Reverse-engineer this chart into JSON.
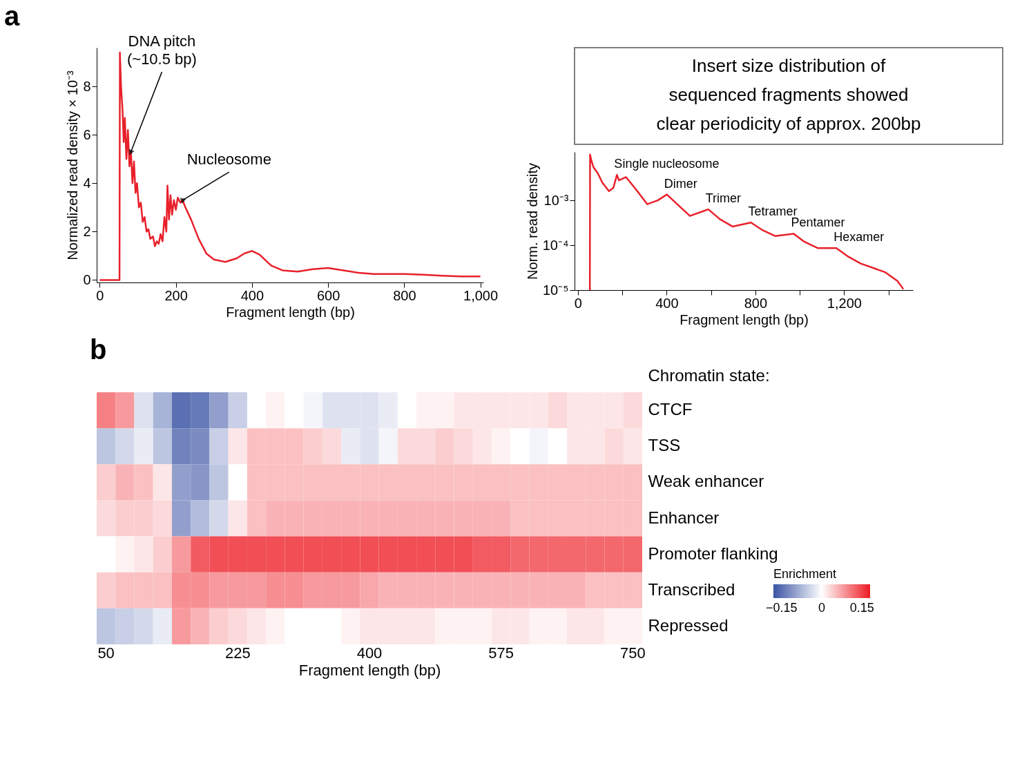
{
  "chart_data": [
    {
      "type": "line",
      "title": "a",
      "xlabel": "Fragment length (bp)",
      "ylabel": "Normalized read density × 10⁻³",
      "xlim": [
        -8,
        1008
      ],
      "xticks": [
        0,
        200,
        400,
        600,
        800,
        {
          "value": 1000,
          "label": "1,000"
        }
      ],
      "ylim": [
        -0.1,
        9.6
      ],
      "yticks": [
        0,
        2,
        4,
        6,
        8
      ],
      "grid": false,
      "marker": "none",
      "line_style": "solid",
      "series": [
        {
          "color": "#e8202a",
          "x": [
            0,
            50,
            52,
            53,
            56,
            60,
            63,
            66,
            70,
            74,
            78,
            82,
            86,
            90,
            94,
            98,
            103,
            108,
            113,
            118,
            123,
            128,
            133,
            140,
            145,
            150,
            155,
            160,
            165,
            170,
            175,
            178,
            182,
            186,
            190,
            195,
            200,
            205,
            212,
            218,
            225,
            240,
            260,
            280,
            300,
            330,
            360,
            380,
            400,
            420,
            450,
            480,
            520,
            560,
            600,
            640,
            680,
            720,
            800,
            850,
            900,
            950,
            1000
          ],
          "values": [
            0,
            0,
            0,
            9.4,
            8.0,
            7.0,
            5.7,
            6.7,
            5.0,
            6.2,
            4.7,
            5.3,
            4.0,
            4.9,
            3.6,
            4.0,
            3.0,
            3.2,
            2.4,
            2.6,
            2.0,
            2.1,
            1.7,
            1.8,
            1.4,
            1.6,
            1.5,
            1.9,
            1.6,
            2.6,
            2.0,
            3.9,
            2.5,
            3.5,
            2.7,
            3.3,
            2.9,
            3.4,
            3.2,
            3.3,
            3.0,
            2.5,
            1.7,
            1.1,
            0.85,
            0.75,
            0.9,
            1.1,
            1.2,
            1.05,
            0.6,
            0.4,
            0.35,
            0.45,
            0.5,
            0.4,
            0.3,
            0.25,
            0.25,
            0.22,
            0.18,
            0.15,
            0.15
          ]
        }
      ],
      "annotations": [
        {
          "text": "DNA pitch\n(~10.5 bp)",
          "x": 82,
          "y": 5.3
        },
        {
          "text": "Nucleosome",
          "x": 218,
          "y": 3.3
        },
        "Insert size distribution of\nsequenced fragments showed\nclear periodicity of approx. 200bp"
      ]
    },
    {
      "type": "line",
      "xlabel": "Fragment length (bp)",
      "ylabel": "Norm. read density",
      "log": "y",
      "xlim": [
        -15,
        1510
      ],
      "xticks": [
        0,
        {
          "value": 200,
          "label": null
        },
        400,
        {
          "value": 600,
          "label": null
        },
        800,
        {
          "value": 1000,
          "label": null
        },
        {
          "value": 1200,
          "label": "1,200"
        },
        {
          "value": 1400,
          "label": null
        }
      ],
      "ylim": [
        1e-05,
        0.012
      ],
      "yticks": [
        {
          "value": 1e-05,
          "label": "10⁻⁵"
        },
        {
          "value": 0.0001,
          "label": "10⁻⁴"
        },
        {
          "value": 0.001,
          "label": "10⁻³"
        }
      ],
      "grid": false,
      "marker": "none",
      "line_style": "solid",
      "series": [
        {
          "color": "#e8202a",
          "x": [
            54,
            55,
            60,
            70,
            90,
            110,
            140,
            160,
            176,
            185,
            217,
            260,
            313,
            360,
            401,
            450,
            505,
            588,
            640,
            698,
            780,
            830,
            890,
            973,
            1020,
            1082,
            1165,
            1220,
            1275,
            1385,
            1440,
            1467
          ],
          "values": [
            1e-05,
            0.0105,
            0.008,
            0.0055,
            0.004,
            0.0025,
            0.0016,
            0.0019,
            0.0037,
            0.0028,
            0.0033,
            0.0018,
            0.00082,
            0.001,
            0.00135,
            0.0008,
            0.00045,
            0.00063,
            0.00038,
            0.00026,
            0.00032,
            0.00022,
            0.00016,
            0.00018,
            0.00012,
            8.6e-05,
            8.6e-05,
            5.5e-05,
            3.9e-05,
            2.5e-05,
            1.6e-05,
            1.05e-05
          ]
        }
      ],
      "annotations": [
        {
          "text": "Single nucleosome",
          "x": 176,
          "y": 0.0037
        },
        {
          "text": "Dimer",
          "x": 401,
          "y": 0.00135
        },
        {
          "text": "Trimer",
          "x": 588,
          "y": 0.00063
        },
        {
          "text": "Tetramer",
          "x": 780,
          "y": 0.00032
        },
        {
          "text": "Pentamer",
          "x": 973,
          "y": 0.00018
        },
        {
          "text": "Hexamer",
          "x": 1165,
          "y": 8.6e-05
        }
      ]
    },
    {
      "type": "heatmap",
      "title": "b",
      "xlabel": "Fragment length (bp)",
      "ylabel": "Chromatin state:",
      "legend_title": "Enrichment",
      "categories": [
        "50",
        null,
        null,
        null,
        null,
        null,
        null,
        "225",
        null,
        null,
        null,
        null,
        null,
        null,
        "400",
        null,
        null,
        null,
        null,
        null,
        null,
        "575",
        null,
        null,
        null,
        null,
        null,
        null,
        "750"
      ],
      "y_categories": [
        "CTCF",
        "TSS",
        "Weak enhancer",
        "Enhancer",
        "Promoter flanking",
        "Transcribed",
        "Repressed"
      ],
      "clim": [
        -0.18,
        0.18
      ],
      "cticks": [
        {
          "value": -0.15,
          "label": "−0.15"
        },
        0,
        0.15
      ],
      "cells": [
        [
          0.1,
          0.08,
          -0.03,
          -0.08,
          -0.15,
          -0.14,
          -0.1,
          -0.05,
          0,
          0.01,
          0,
          -0.01,
          -0.03,
          -0.03,
          -0.03,
          -0.02,
          0,
          0.01,
          0.01,
          0.02,
          0.02,
          0.02,
          0.02,
          0.02,
          0.03,
          0.02,
          0.02,
          0.02,
          0.03
        ],
        [
          -0.06,
          -0.04,
          -0.02,
          -0.06,
          -0.13,
          -0.12,
          -0.05,
          0.02,
          0.05,
          0.05,
          0.05,
          0.04,
          0.03,
          -0.02,
          -0.03,
          -0.01,
          0.03,
          0.03,
          0.04,
          0.03,
          0.02,
          0.01,
          0,
          -0.01,
          0,
          0.02,
          0.02,
          0.03,
          0.02
        ],
        [
          0.04,
          0.06,
          0.05,
          0.02,
          -0.1,
          -0.11,
          -0.06,
          0,
          0.05,
          0.05,
          0.05,
          0.05,
          0.05,
          0.05,
          0.05,
          0.05,
          0.05,
          0.05,
          0.05,
          0.05,
          0.05,
          0.05,
          0.05,
          0.05,
          0.05,
          0.05,
          0.05,
          0.05,
          0.05
        ],
        [
          0.03,
          0.04,
          0.04,
          0.03,
          -0.1,
          -0.07,
          -0.04,
          0.02,
          0.05,
          0.06,
          0.06,
          0.06,
          0.06,
          0.06,
          0.06,
          0.06,
          0.06,
          0.06,
          0.06,
          0.06,
          0.06,
          0.06,
          0.05,
          0.05,
          0.05,
          0.05,
          0.05,
          0.05,
          0.05
        ],
        [
          0,
          0.01,
          0.02,
          0.04,
          0.08,
          0.13,
          0.14,
          0.14,
          0.14,
          0.14,
          0.14,
          0.14,
          0.14,
          0.14,
          0.14,
          0.14,
          0.14,
          0.14,
          0.14,
          0.14,
          0.13,
          0.13,
          0.12,
          0.12,
          0.12,
          0.12,
          0.12,
          0.12,
          0.12
        ],
        [
          0.04,
          0.05,
          0.05,
          0.05,
          0.09,
          0.09,
          0.08,
          0.08,
          0.08,
          0.09,
          0.09,
          0.08,
          0.08,
          0.08,
          0.07,
          0.06,
          0.06,
          0.06,
          0.06,
          0.06,
          0.06,
          0.06,
          0.06,
          0.06,
          0.06,
          0.06,
          0.05,
          0.05,
          0.05
        ],
        [
          -0.06,
          -0.05,
          -0.04,
          -0.02,
          0.08,
          0.06,
          0.04,
          0.03,
          0.02,
          0.01,
          0,
          0,
          0,
          0.01,
          0.02,
          0.02,
          0.02,
          0.02,
          0.01,
          0.01,
          0.01,
          0.02,
          0.02,
          0.01,
          0.01,
          0.02,
          0.02,
          0.01,
          0.01
        ]
      ]
    }
  ]
}
